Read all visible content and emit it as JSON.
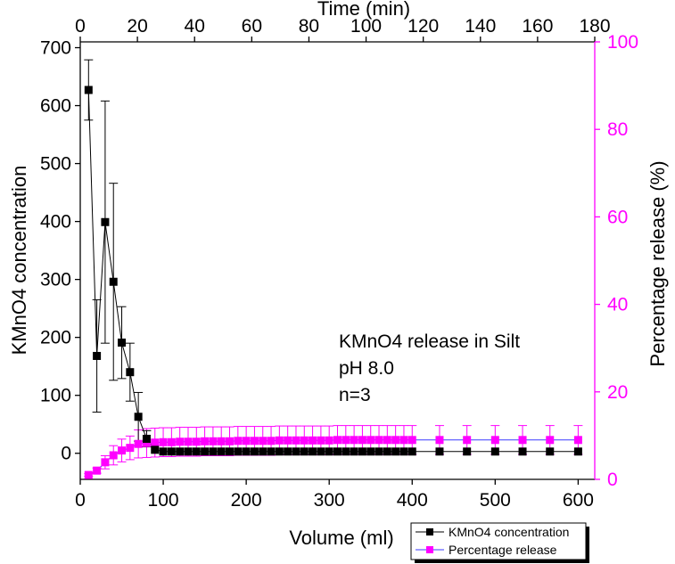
{
  "chart_data": {
    "type": "line",
    "xlabel": "Volume (ml)",
    "x_top_label": "Time (min)",
    "ylabel": "KMnO4 concentration",
    "y2label": "Percentage release (%)",
    "xlim": [
      0,
      620
    ],
    "x_top_lim": [
      0,
      180
    ],
    "ylim": [
      -45,
      710
    ],
    "y2lim": [
      0,
      100
    ],
    "x_ticks": [
      0,
      100,
      200,
      300,
      400,
      500,
      600
    ],
    "x_top_ticks": [
      0,
      20,
      40,
      60,
      80,
      100,
      120,
      140,
      160,
      180
    ],
    "y_ticks": [
      0,
      100,
      200,
      300,
      400,
      500,
      600,
      700
    ],
    "y2_ticks": [
      0,
      20,
      40,
      60,
      80,
      100
    ],
    "annotations": [
      "KMnO4 release in Silt",
      "pH 8.0",
      "n=3"
    ],
    "legend_position": "bottom-right",
    "colors": {
      "series1": "#000000",
      "series2": "#ff00ff",
      "series2_line": "#3a3aff"
    },
    "series": [
      {
        "name": "KMnO4 concentration",
        "axis": "left",
        "x": [
          10,
          20,
          30,
          40,
          50,
          60,
          70,
          80,
          90,
          100,
          110,
          120,
          130,
          140,
          150,
          160,
          170,
          180,
          190,
          200,
          210,
          220,
          230,
          240,
          250,
          260,
          270,
          280,
          290,
          300,
          310,
          320,
          330,
          340,
          350,
          360,
          370,
          380,
          390,
          400,
          433,
          466,
          500,
          533,
          566,
          600
        ],
        "values": [
          627,
          168,
          399,
          296,
          191,
          140,
          63,
          25,
          6,
          3,
          3,
          3,
          3,
          3,
          3,
          3,
          3,
          3,
          3,
          3,
          3,
          3,
          3,
          3,
          3,
          3,
          3,
          3,
          3,
          3,
          3,
          3,
          3,
          3,
          3,
          3,
          3,
          3,
          3,
          3,
          3,
          3,
          3,
          3,
          3,
          3
        ],
        "errors": [
          52,
          97,
          209,
          170,
          62,
          50,
          42,
          14,
          0,
          0,
          0,
          0,
          0,
          0,
          0,
          0,
          0,
          0,
          0,
          0,
          0,
          0,
          0,
          0,
          0,
          0,
          0,
          0,
          0,
          0,
          0,
          0,
          0,
          0,
          0,
          0,
          0,
          0,
          0,
          0,
          0,
          0,
          0,
          0,
          0,
          0
        ]
      },
      {
        "name": "Percentage release",
        "axis": "right",
        "x": [
          10,
          20,
          30,
          40,
          50,
          60,
          70,
          80,
          90,
          100,
          110,
          120,
          130,
          140,
          150,
          160,
          170,
          180,
          190,
          200,
          210,
          220,
          230,
          240,
          250,
          260,
          270,
          280,
          290,
          300,
          310,
          320,
          330,
          340,
          350,
          360,
          370,
          380,
          390,
          400,
          433,
          466,
          500,
          533,
          566,
          600
        ],
        "values": [
          1,
          2,
          3.9,
          5.5,
          6.6,
          7.2,
          8.1,
          8.3,
          8.4,
          8.5,
          8.5,
          8.6,
          8.6,
          8.6,
          8.7,
          8.7,
          8.7,
          8.7,
          8.8,
          8.8,
          8.8,
          8.8,
          8.8,
          8.9,
          8.9,
          8.9,
          8.9,
          8.9,
          8.9,
          8.9,
          9.0,
          9.0,
          9.0,
          9.0,
          9.0,
          9.0,
          9.0,
          9.0,
          9.0,
          9.0,
          9.0,
          9.0,
          9.0,
          9.0,
          9.0,
          9.0
        ],
        "errors": [
          0.3,
          0.6,
          1.5,
          2.2,
          2.6,
          2.7,
          3.2,
          3.3,
          3.3,
          3.3,
          3.3,
          3.3,
          3.3,
          3.3,
          3.3,
          3.3,
          3.3,
          3.3,
          3.3,
          3.3,
          3.3,
          3.3,
          3.3,
          3.3,
          3.3,
          3.3,
          3.3,
          3.3,
          3.3,
          3.3,
          3.3,
          3.3,
          3.3,
          3.3,
          3.3,
          3.3,
          3.3,
          3.3,
          3.3,
          3.3,
          3.3,
          3.3,
          3.3,
          3.3,
          3.3,
          3.3
        ]
      }
    ]
  }
}
